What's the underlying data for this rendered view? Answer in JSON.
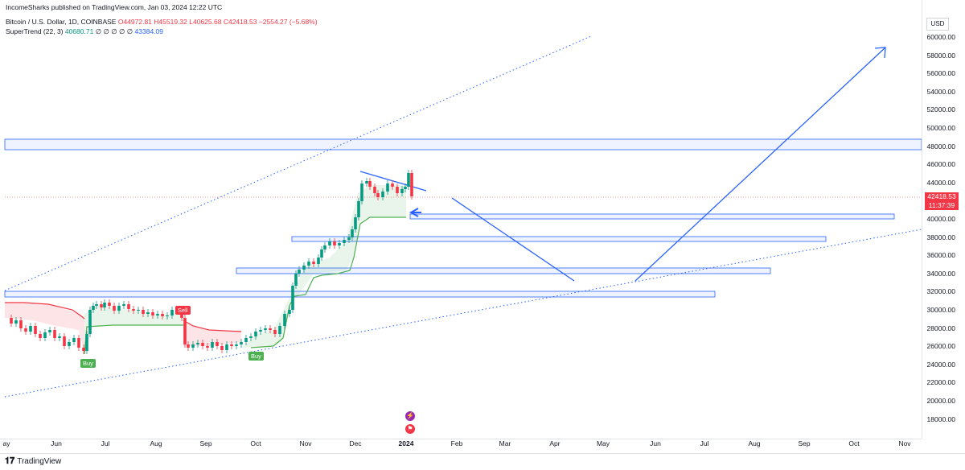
{
  "header": {
    "publisher_line": "IncomeSharks published on TradingView.com, Jan 03, 2024 12:22 UTC",
    "symbol": "Bitcoin / U.S. Dollar, 1D, COINBASE",
    "open": "O44972.81",
    "high": "H45519.32",
    "low": "L40625.68",
    "close": "C42418.53",
    "change": "−2554.27 (−5.68%)",
    "indicator_name": "SuperTrend (22, 3)",
    "indicator_value1": "40680.71",
    "indicator_dots": "∅ ∅ ∅ ∅ ∅",
    "indicator_value2": "43384.09"
  },
  "price_axis": {
    "currency": "USD",
    "labels": [
      "60000.00",
      "58000.00",
      "56000.00",
      "54000.00",
      "52000.00",
      "50000.00",
      "48000.00",
      "46000.00",
      "44000.00",
      "42000.00",
      "40000.00",
      "38000.00",
      "36000.00",
      "34000.00",
      "32000.00",
      "30000.00",
      "28000.00",
      "26000.00",
      "24000.00",
      "22000.00",
      "20000.00",
      "18000.00"
    ],
    "current_price": "42418.53",
    "countdown": "11:37:39"
  },
  "time_axis": {
    "labels": [
      "ay",
      "Jun",
      "Jul",
      "Aug",
      "Sep",
      "Oct",
      "Nov",
      "Dec",
      "2024",
      "Feb",
      "Mar",
      "Apr",
      "May",
      "Jun",
      "Jul",
      "Aug",
      "Sep",
      "Oct",
      "Nov"
    ]
  },
  "signals": {
    "buy1": "Buy",
    "sell1": "Sell",
    "buy2": "Buy"
  },
  "footer": {
    "brand": "TradingView"
  },
  "colors": {
    "up": "#089981",
    "down": "#f23645",
    "drawing": "#2962ff",
    "supertrend_up": "#4caf50",
    "supertrend_down": "#f23645"
  }
}
